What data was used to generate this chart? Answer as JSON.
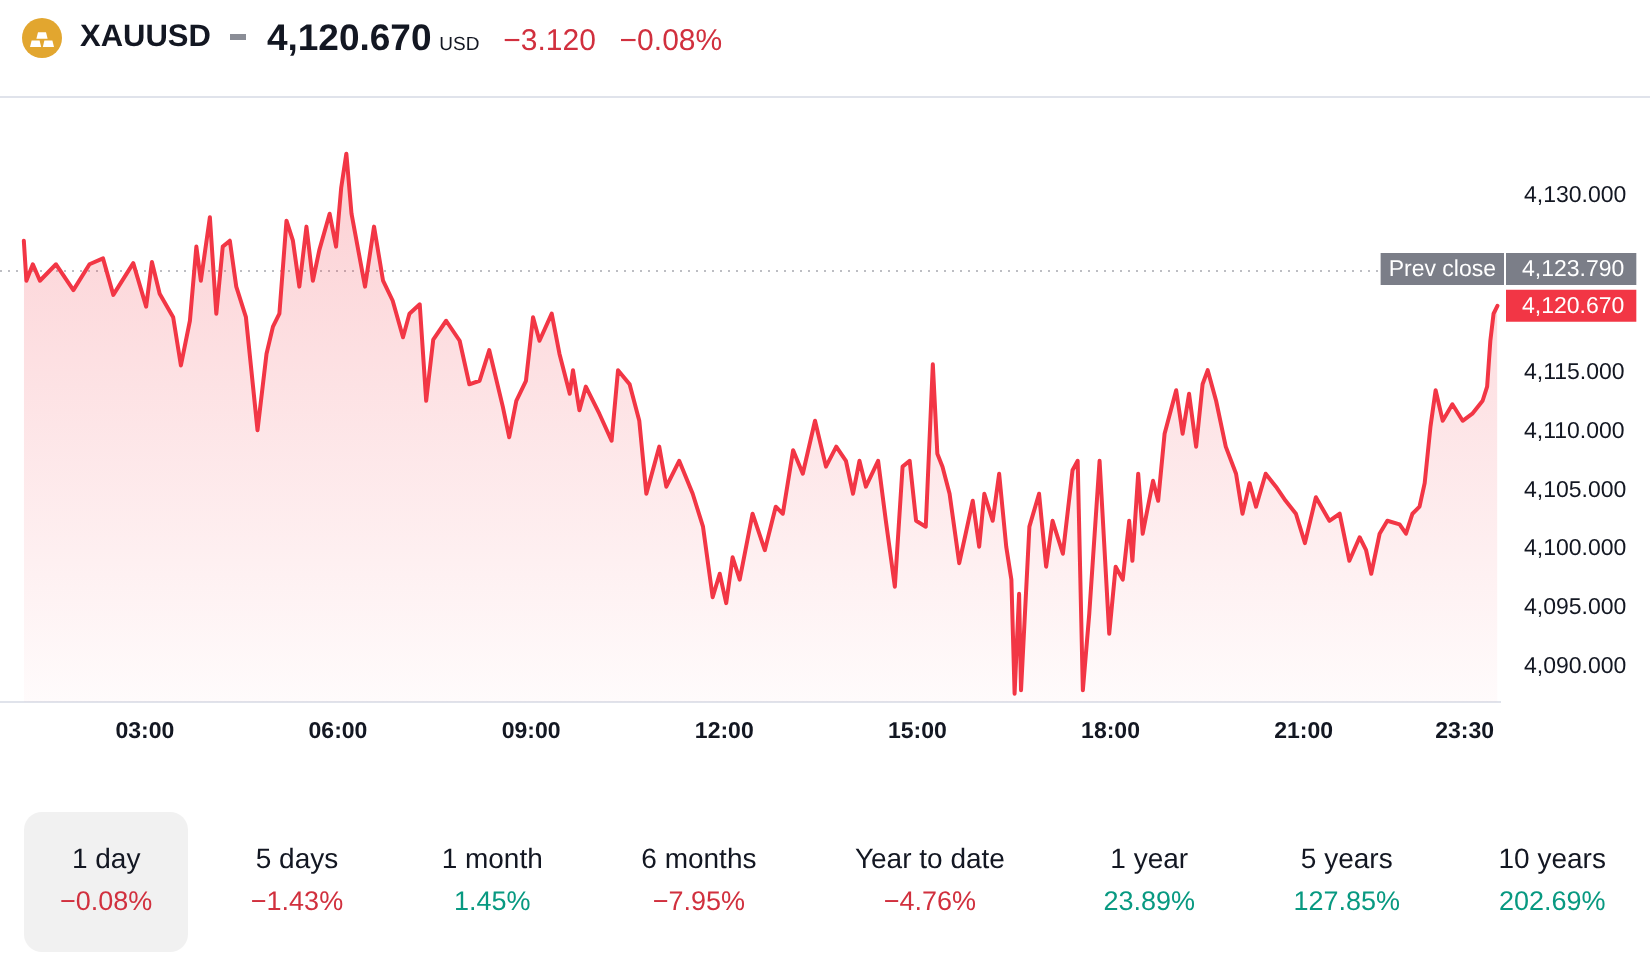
{
  "chart_data": [
    {
      "type": "area",
      "title": "XAUUSD",
      "subtitle": "4,120.670 USD −3.120 −0.08%",
      "x": [
        1.12,
        1.16,
        1.26,
        1.37,
        1.62,
        1.89,
        2.14,
        2.35,
        2.51,
        2.82,
        3.02,
        3.11,
        3.23,
        3.44,
        3.56,
        3.7,
        3.8,
        3.87,
        4.01,
        4.11,
        4.21,
        4.32,
        4.42,
        4.57,
        4.75,
        4.89,
        4.99,
        5.09,
        5.2,
        5.3,
        5.4,
        5.51,
        5.61,
        5.71,
        5.87,
        5.97,
        6.05,
        6.13,
        6.21,
        6.42,
        6.56,
        6.7,
        6.85,
        7.01,
        7.11,
        7.27,
        7.37,
        7.48,
        7.68,
        7.89,
        8.04,
        8.2,
        8.35,
        8.56,
        8.66,
        8.77,
        8.92,
        9.03,
        9.13,
        9.32,
        9.44,
        9.6,
        9.65,
        9.75,
        9.85,
        10.06,
        10.25,
        10.35,
        10.53,
        10.68,
        10.79,
        10.99,
        11.1,
        11.3,
        11.51,
        11.67,
        11.82,
        11.93,
        12.03,
        12.13,
        12.24,
        12.44,
        12.63,
        12.8,
        12.91,
        13.07,
        13.22,
        13.41,
        13.58,
        13.74,
        13.89,
        14.0,
        14.1,
        14.2,
        14.39,
        14.51,
        14.65,
        14.77,
        14.88,
        14.98,
        15.13,
        15.24,
        15.31,
        15.39,
        15.5,
        15.65,
        15.75,
        15.86,
        15.96,
        16.04,
        16.17,
        16.27,
        16.38,
        16.46,
        16.51,
        16.58,
        16.61,
        16.74,
        16.89,
        17.0,
        17.1,
        17.26,
        17.41,
        17.49,
        17.57,
        17.67,
        17.83,
        17.98,
        18.08,
        18.19,
        18.29,
        18.34,
        18.43,
        18.5,
        18.66,
        18.74,
        18.84,
        19.02,
        19.12,
        19.22,
        19.33,
        19.43,
        19.51,
        19.64,
        19.79,
        19.95,
        20.05,
        20.16,
        20.26,
        20.41,
        20.57,
        20.72,
        20.88,
        21.02,
        21.19,
        21.4,
        21.56,
        21.71,
        21.87,
        21.97,
        22.05,
        22.18,
        22.3,
        22.49,
        22.59,
        22.69,
        22.8,
        22.88,
        22.97,
        23.05,
        23.16,
        23.31,
        23.47,
        23.62,
        23.78,
        23.85,
        23.9,
        23.95,
        24.01
      ],
      "series": [
        {
          "color": "#f23645",
          "values": [
            4126.2,
            4122.8,
            4124.2,
            4122.8,
            4124.2,
            4122.0,
            4124.2,
            4124.7,
            4121.6,
            4124.3,
            4120.6,
            4124.4,
            4121.7,
            4119.7,
            4115.6,
            4119.4,
            4125.7,
            4122.8,
            4128.2,
            4120.0,
            4125.7,
            4126.2,
            4122.3,
            4119.7,
            4110.1,
            4116.6,
            4118.9,
            4120.0,
            4127.9,
            4126.2,
            4122.3,
            4127.4,
            4122.8,
            4125.4,
            4128.5,
            4125.7,
            4130.7,
            4133.6,
            4128.5,
            4122.3,
            4127.4,
            4122.8,
            4121.1,
            4118.0,
            4120.0,
            4120.8,
            4112.6,
            4117.8,
            4119.4,
            4117.7,
            4114.0,
            4114.3,
            4116.9,
            4112.1,
            4109.5,
            4112.6,
            4114.3,
            4119.7,
            4117.7,
            4120.0,
            4116.6,
            4113.2,
            4115.2,
            4111.8,
            4113.8,
            4111.5,
            4109.2,
            4115.2,
            4114.0,
            4110.9,
            4104.7,
            4108.7,
            4105.3,
            4107.5,
            4104.7,
            4101.9,
            4095.9,
            4097.9,
            4095.4,
            4099.3,
            4097.4,
            4103.0,
            4099.9,
            4103.6,
            4103.0,
            4108.4,
            4106.4,
            4110.9,
            4107.0,
            4108.7,
            4107.5,
            4104.7,
            4107.5,
            4105.3,
            4107.5,
            4102.4,
            4096.8,
            4107.0,
            4107.5,
            4102.4,
            4101.9,
            4115.7,
            4108.1,
            4107.0,
            4104.7,
            4098.8,
            4101.3,
            4104.1,
            4100.2,
            4104.7,
            4102.4,
            4106.4,
            4100.2,
            4097.4,
            4087.7,
            4096.2,
            4088.0,
            4101.9,
            4104.7,
            4098.5,
            4102.4,
            4099.6,
            4106.7,
            4107.5,
            4088.0,
            4094.5,
            4107.5,
            4092.8,
            4098.5,
            4097.4,
            4102.4,
            4099.0,
            4106.4,
            4101.3,
            4105.8,
            4104.1,
            4109.8,
            4113.5,
            4109.8,
            4113.2,
            4108.7,
            4114.0,
            4115.2,
            4112.6,
            4108.7,
            4106.4,
            4103.0,
            4105.6,
            4103.6,
            4106.4,
            4105.3,
            4104.1,
            4103.0,
            4100.5,
            4104.4,
            4102.4,
            4103.0,
            4099.0,
            4101.0,
            4099.9,
            4097.9,
            4101.3,
            4102.4,
            4102.1,
            4101.3,
            4103.0,
            4103.6,
            4105.6,
            4110.4,
            4113.5,
            4110.9,
            4112.3,
            4110.9,
            4111.5,
            4112.6,
            4113.8,
            4117.7,
            4120.0,
            4120.67
          ],
          "value_labels": [
            null,
            null,
            null,
            null,
            null,
            null,
            null,
            null,
            null,
            null,
            null,
            null,
            null,
            null,
            null,
            null,
            null,
            null,
            null,
            null,
            null,
            null,
            null,
            null,
            null,
            null,
            null,
            null,
            null,
            null,
            null,
            null,
            null,
            null,
            null,
            null,
            null,
            null,
            null,
            null,
            null,
            null,
            null,
            null,
            null,
            null,
            null,
            null,
            null,
            null,
            null,
            null,
            null,
            null,
            null,
            null,
            null,
            null,
            null,
            null,
            null,
            null,
            null,
            null,
            null,
            null,
            null,
            null,
            null,
            null,
            null,
            null,
            null,
            null,
            null,
            null,
            null,
            null,
            null,
            null,
            null,
            null,
            null,
            null,
            null,
            null,
            null,
            null,
            null,
            null,
            null,
            null,
            null,
            null,
            null,
            null,
            null,
            null,
            null,
            null,
            null,
            null,
            null,
            null,
            null,
            null,
            null,
            null,
            null,
            null,
            null,
            null,
            null,
            null,
            null,
            null,
            null,
            null,
            null,
            null,
            null,
            null,
            null,
            null,
            null,
            null,
            null,
            null,
            null,
            null,
            null,
            null,
            null,
            null,
            null,
            null,
            null,
            null,
            null,
            null,
            null,
            null,
            null,
            null,
            null,
            null,
            null,
            null,
            null,
            null,
            null,
            null,
            null,
            null,
            null,
            null,
            null,
            null,
            null,
            null,
            null,
            null,
            null,
            null,
            null,
            null,
            null,
            null,
            null,
            null,
            null,
            null,
            null,
            null,
            null,
            null,
            null,
            null,
            "4,120.670"
          ]
        }
      ],
      "xlim": [
        0.75,
        24.05
      ],
      "xticks": [
        {
          "value": 3,
          "label": "03:00"
        },
        {
          "value": 6,
          "label": "06:00"
        },
        {
          "value": 9,
          "label": "09:00"
        },
        {
          "value": 12,
          "label": "12:00"
        },
        {
          "value": 15,
          "label": "15:00"
        },
        {
          "value": 18,
          "label": "18:00"
        },
        {
          "value": 21,
          "label": "21:00"
        },
        {
          "value": 23.5,
          "label": "23:30"
        }
      ],
      "ylim": [
        4087,
        4138.5
      ],
      "yticks": [
        {
          "value": 4090,
          "label": "4,090.000"
        },
        {
          "value": 4095,
          "label": "4,095.000"
        },
        {
          "value": 4100,
          "label": "4,100.000"
        },
        {
          "value": 4105,
          "label": "4,105.000"
        },
        {
          "value": 4110,
          "label": "4,110.000"
        },
        {
          "value": 4115,
          "label": "4,115.000"
        },
        {
          "value": 4130,
          "label": "4,130.000"
        }
      ],
      "ref_lines": [
        {
          "axis": "y",
          "value": 4123.79,
          "label": "Prev close",
          "color": "#7b7e88",
          "line_style": "dotted"
        }
      ],
      "annotations": [
        {
          "text": "4,123.790",
          "x": 24.05,
          "y": 4123.79
        }
      ]
    },
    {
      "type": "other",
      "categories": [
        "1 day",
        "5 days",
        "1 month",
        "6 months",
        "Year to date",
        "1 year",
        "5 years",
        "10 years"
      ],
      "value_labels": [
        "−0.08%",
        "−1.43%",
        "1.45%",
        "−7.95%",
        "−4.76%",
        "23.89%",
        "127.85%",
        "202.69%"
      ],
      "colors": [
        "#d1303e",
        "#d1303e",
        "#089981",
        "#d1303e",
        "#d1303e",
        "#089981",
        "#089981",
        "#089981"
      ]
    }
  ]
}
